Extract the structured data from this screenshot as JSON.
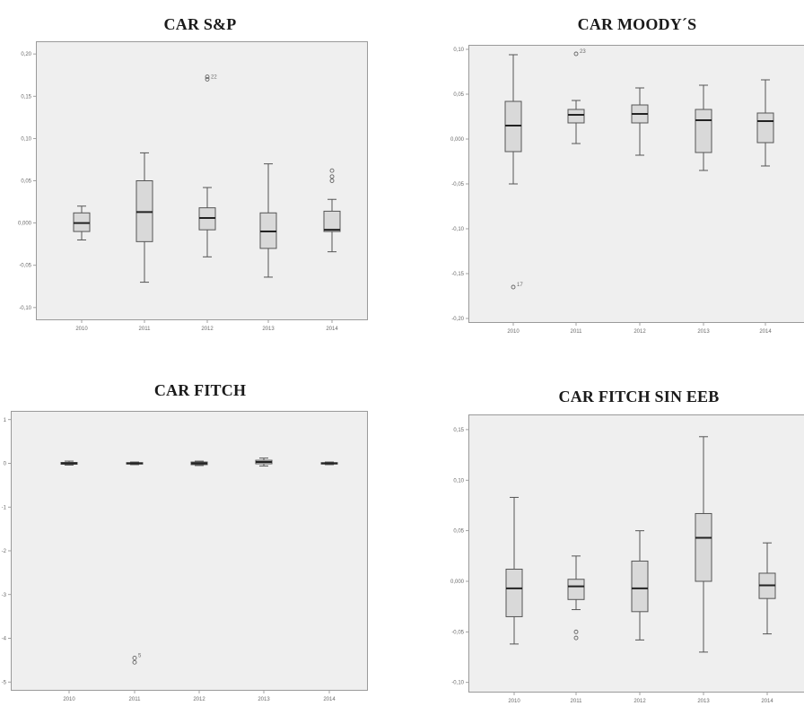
{
  "chart_data": [
    {
      "type": "boxplot",
      "title": "CAR S&P",
      "categories": [
        "2010",
        "2011",
        "2012",
        "2013",
        "2014"
      ],
      "yticks": [
        "0,20",
        "0,15",
        "0,10",
        "0,05",
        "0,000",
        "-0,05",
        "-0,10"
      ],
      "ylim": [
        -0.115,
        0.215
      ],
      "boxes": [
        {
          "min": -0.02,
          "q1": -0.01,
          "median": 0.0,
          "q3": 0.012,
          "max": 0.02
        },
        {
          "min": -0.07,
          "q1": -0.022,
          "median": 0.013,
          "q3": 0.05,
          "max": 0.083
        },
        {
          "min": -0.04,
          "q1": -0.008,
          "median": 0.006,
          "q3": 0.018,
          "max": 0.042
        },
        {
          "min": -0.064,
          "q1": -0.03,
          "median": -0.01,
          "q3": 0.012,
          "max": 0.07
        },
        {
          "min": -0.034,
          "q1": -0.01,
          "median": -0.008,
          "q3": 0.014,
          "max": 0.028
        }
      ],
      "outliers": [
        {
          "category": "2012",
          "y": 0.17,
          "label": "22"
        },
        {
          "category": "2012",
          "y": 0.173,
          "label": ""
        },
        {
          "category": "2014",
          "y": 0.055,
          "label": ""
        },
        {
          "category": "2014",
          "y": 0.062,
          "label": ""
        },
        {
          "category": "2014",
          "y": 0.05,
          "label": ""
        }
      ]
    },
    {
      "type": "boxplot",
      "title": "CAR MOODY´S",
      "categories": [
        "2010",
        "2011",
        "2012",
        "2013",
        "2014"
      ],
      "yticks": [
        "0,10",
        "0,05",
        "0,000",
        "-0,05",
        "-0,10",
        "-0,15",
        "-0,20"
      ],
      "ylim": [
        -0.205,
        0.105
      ],
      "boxes": [
        {
          "min": -0.05,
          "q1": -0.014,
          "median": 0.015,
          "q3": 0.042,
          "max": 0.094
        },
        {
          "min": -0.005,
          "q1": 0.018,
          "median": 0.027,
          "q3": 0.033,
          "max": 0.043
        },
        {
          "min": -0.018,
          "q1": 0.018,
          "median": 0.028,
          "q3": 0.038,
          "max": 0.057
        },
        {
          "min": -0.035,
          "q1": -0.015,
          "median": 0.021,
          "q3": 0.033,
          "max": 0.06
        },
        {
          "min": -0.03,
          "q1": -0.004,
          "median": 0.02,
          "q3": 0.029,
          "max": 0.066
        }
      ],
      "outliers": [
        {
          "category": "2010",
          "y": -0.165,
          "label": "17"
        },
        {
          "category": "2011",
          "y": 0.095,
          "label": "23"
        }
      ]
    },
    {
      "type": "boxplot",
      "title": "CAR FITCH",
      "categories": [
        "2010",
        "2011",
        "2012",
        "2013",
        "2014"
      ],
      "yticks": [
        "1",
        "0",
        "-1",
        "-2",
        "-3",
        "-4",
        "-5"
      ],
      "ylim": [
        -5.2,
        1.2
      ],
      "boxes": [
        {
          "min": -0.04,
          "q1": -0.02,
          "median": 0.0,
          "q3": 0.02,
          "max": 0.05
        },
        {
          "min": -0.03,
          "q1": -0.015,
          "median": 0.0,
          "q3": 0.015,
          "max": 0.03
        },
        {
          "min": -0.05,
          "q1": -0.03,
          "median": 0.0,
          "q3": 0.03,
          "max": 0.05
        },
        {
          "min": -0.06,
          "q1": -0.01,
          "median": 0.03,
          "q3": 0.07,
          "max": 0.12
        },
        {
          "min": -0.03,
          "q1": -0.015,
          "median": 0.0,
          "q3": 0.015,
          "max": 0.03
        }
      ],
      "outliers": [
        {
          "category": "2011",
          "y": -4.55,
          "label": ""
        },
        {
          "category": "2011",
          "y": -4.45,
          "label": "5"
        }
      ]
    },
    {
      "type": "boxplot",
      "title": "CAR FITCH SIN EEB",
      "categories": [
        "2010",
        "2011",
        "2012",
        "2013",
        "2014"
      ],
      "yticks": [
        "0,15",
        "0,10",
        "0,05",
        "0,000",
        "-0,05",
        "-0,10"
      ],
      "ylim": [
        -0.11,
        0.165
      ],
      "boxes": [
        {
          "min": -0.062,
          "q1": -0.035,
          "median": -0.007,
          "q3": 0.012,
          "max": 0.083
        },
        {
          "min": -0.028,
          "q1": -0.018,
          "median": -0.005,
          "q3": 0.002,
          "max": 0.025
        },
        {
          "min": -0.058,
          "q1": -0.03,
          "median": -0.007,
          "q3": 0.02,
          "max": 0.05
        },
        {
          "min": -0.07,
          "q1": 0.0,
          "median": 0.043,
          "q3": 0.067,
          "max": 0.143
        },
        {
          "min": -0.052,
          "q1": -0.017,
          "median": -0.004,
          "q3": 0.008,
          "max": 0.038
        }
      ],
      "outliers": [
        {
          "category": "2011",
          "y": -0.056,
          "label": ""
        },
        {
          "category": "2011",
          "y": -0.05,
          "label": ""
        }
      ]
    }
  ]
}
